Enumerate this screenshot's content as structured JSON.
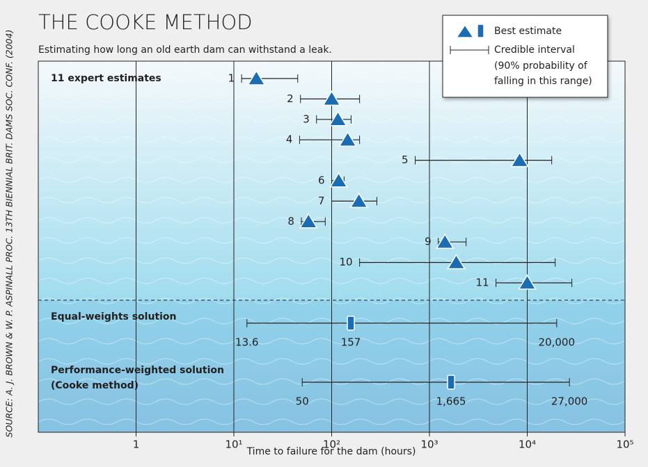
{
  "chart_data": {
    "type": "interval",
    "title": "THE COOKE METHOD",
    "subtitle": "Estimating how long an old earth dam can withstand a leak.",
    "source": "SOURCE: A. J. BROWN & W. P. ASPINALL PROC. 13TH BIENNIAL BRIT. DAMS SOC. CONF. (2004)",
    "xlabel": "Time to failure for the dam (hours)",
    "xscale": "log",
    "xlim": [
      0.1,
      100000
    ],
    "xticks": [
      1,
      {
        "value": 10,
        "label": "10¹"
      },
      {
        "value": 100,
        "label": "10²"
      },
      {
        "value": 1000,
        "label": "10³"
      },
      {
        "value": 10000,
        "label": "10⁴"
      },
      {
        "value": 100000,
        "label": "10⁵"
      }
    ],
    "grid": true,
    "color": "#1b6db3",
    "legend": {
      "best": "Best estimate",
      "interval": [
        "Credible interval",
        "(90% probability of",
        "falling in this range)"
      ]
    },
    "group_label": "11 expert estimates",
    "categories": [
      "1",
      "2",
      "3",
      "4",
      "5",
      "6",
      "7",
      "8",
      "9",
      "10",
      "11"
    ],
    "low": [
      12,
      48,
      70,
      47,
      715,
      100,
      100,
      49,
      1230,
      193,
      4790
    ],
    "best": [
      17,
      100,
      116,
      146,
      8360,
      118,
      190,
      58,
      1440,
      1880,
      10000
    ],
    "high": [
      45,
      193,
      158,
      193,
      17800,
      134,
      290,
      86,
      2370,
      19300,
      28600
    ],
    "solutions": [
      {
        "name": [
          "Equal-weights solution"
        ],
        "low": 13.6,
        "best": 157,
        "high": 20000,
        "value_labels": [
          "13.6",
          "157",
          "20,000"
        ]
      },
      {
        "name": [
          "Performance-weighted solution",
          "(Cooke method)"
        ],
        "low": 50,
        "best": 1665,
        "high": 27000,
        "value_labels": [
          "50",
          "1,665",
          "27,000"
        ]
      }
    ]
  }
}
